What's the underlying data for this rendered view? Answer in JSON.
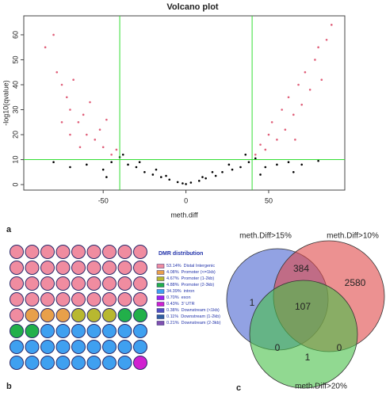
{
  "chart_data": [
    {
      "type": "scatter",
      "title": "Volcano plot",
      "xlabel": "meth.diff",
      "ylabel": "-log10(qvalue)",
      "panel_label": "a",
      "xlim": [
        -98,
        96
      ],
      "ylim": [
        -2.2,
        67.6
      ],
      "xticks": [
        -50,
        0,
        50
      ],
      "yticks": [
        0,
        10,
        20,
        30,
        40,
        50,
        60
      ],
      "threshold_x": [
        -40,
        40
      ],
      "threshold_y": [
        10
      ],
      "threshold_color": "#33dd33",
      "series": [
        {
          "color": "#000000",
          "x": [
            -60,
            -50,
            -45,
            -40,
            -35,
            -30,
            -25,
            -20,
            -15,
            -10,
            -5,
            -2,
            0,
            3,
            8,
            12,
            18,
            22,
            28,
            33,
            38,
            42,
            48,
            55,
            62,
            70,
            -70,
            -38,
            36,
            -28,
            26,
            -18,
            16,
            -12,
            10,
            -48,
            45,
            -80,
            80,
            65
          ],
          "values": [
            8,
            6,
            9,
            11,
            8,
            7,
            5,
            4,
            3,
            2,
            1,
            0.5,
            0.2,
            0.8,
            1.5,
            2.5,
            3.5,
            5,
            6,
            7,
            9,
            10.5,
            7,
            8,
            9,
            8,
            7,
            12,
            12,
            9,
            8,
            6,
            5,
            3.5,
            3,
            3,
            4,
            9,
            9.5,
            5
          ]
        },
        {
          "color": "#e0607a",
          "x": [
            -85,
            -80,
            -78,
            -75,
            -72,
            -70,
            -68,
            -65,
            -62,
            -60,
            -58,
            -55,
            -52,
            -50,
            -48,
            -45,
            -42,
            -70,
            -75,
            -64,
            42,
            45,
            48,
            50,
            52,
            55,
            58,
            60,
            62,
            65,
            68,
            70,
            72,
            75,
            78,
            80,
            82,
            85,
            88,
            66
          ],
          "values": [
            55,
            60,
            45,
            40,
            35,
            30,
            42,
            25,
            28,
            20,
            33,
            18,
            22,
            15,
            26,
            12,
            14,
            20,
            25,
            15,
            12,
            16,
            14,
            20,
            25,
            18,
            30,
            22,
            35,
            28,
            40,
            32,
            45,
            38,
            50,
            55,
            42,
            58,
            64,
            18
          ]
        }
      ]
    },
    {
      "type": "waffle",
      "title": "DMR distribution",
      "panel_label": "b",
      "categories": [
        "Distal Intergenic",
        "Promoter (<=1kb)",
        "Promoter (1-2kb)",
        "Promoter (2-3kb)",
        "intron",
        "exon",
        "3' UTR",
        "Downstream (<1kb)",
        "Downstream (1-2kb)",
        "Downstream (2-3kb)"
      ],
      "values": [
        53.14,
        4.08,
        4.67,
        4.88,
        34.39,
        0.7,
        0.43,
        0.38,
        0.11,
        0.21
      ],
      "value_labels": [
        "53.14%",
        "4.08%",
        "4.67%",
        "4.88%",
        "34.39%",
        "0.70%",
        "0.43%",
        "0.38%",
        "0.11%",
        "0.21%"
      ],
      "colors": [
        "#f08ca0",
        "#e8a04a",
        "#b8b830",
        "#22b04a",
        "#3fa0f0",
        "#a020f0",
        "#d020d0",
        "#5050c0",
        "#3060a0",
        "#8050b0"
      ]
    },
    {
      "type": "venn",
      "panel_label": "c",
      "sets": [
        {
          "name": "meth.Diff>15%",
          "color": "#4a64d0"
        },
        {
          "name": "meth.Diff>10%",
          "color": "#e04848"
        },
        {
          "name": "meth.Diff>20%",
          "color": "#48c048"
        }
      ],
      "values": [
        1,
        384,
        2580,
        107,
        0,
        0,
        1
      ]
    }
  ]
}
